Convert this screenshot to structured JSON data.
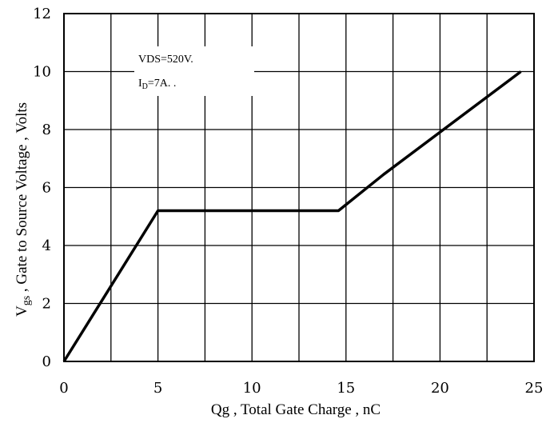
{
  "chart_data": {
    "type": "line",
    "title": "",
    "xlabel": "Qg , Total Gate Charge , nC",
    "ylabel_main": "V",
    "ylabel_sub": "gs",
    "ylabel_rest": " , Gate to Source Voltage , Volts",
    "xlim": [
      0,
      25
    ],
    "ylim": [
      0,
      12
    ],
    "x_ticks": [
      0,
      5,
      10,
      15,
      20,
      25
    ],
    "y_ticks": [
      0,
      2,
      4,
      6,
      8,
      10,
      12
    ],
    "grid": true,
    "annotations": {
      "line1": "VDS=520V.",
      "line2_main": "I",
      "line2_sub": "D",
      "line2_rest": "=7A. ."
    },
    "series": [
      {
        "x": [
          0,
          5,
          14.6,
          17,
          24.3
        ],
        "y": [
          0,
          5.2,
          5.2,
          6.45,
          10
        ]
      }
    ]
  }
}
